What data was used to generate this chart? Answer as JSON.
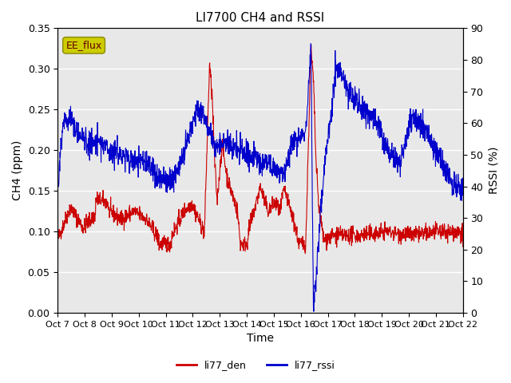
{
  "title": "LI7700 CH4 and RSSI",
  "xlabel": "Time",
  "ylabel_left": "CH4 (ppm)",
  "ylabel_right": "RSSI (%)",
  "ylim_left": [
    0.0,
    0.35
  ],
  "ylim_right": [
    0,
    90
  ],
  "yticks_left": [
    0.0,
    0.05,
    0.1,
    0.15,
    0.2,
    0.25,
    0.3,
    0.35
  ],
  "yticks_right": [
    0,
    10,
    20,
    30,
    40,
    50,
    60,
    70,
    80,
    90
  ],
  "xtick_labels": [
    "Oct 7",
    "Oct 8",
    "Oct 9",
    "Oct 10",
    "Oct 11",
    "Oct 12",
    "Oct 13",
    "Oct 14",
    "Oct 15",
    "Oct 16",
    "Oct 17",
    "Oct 18",
    "Oct 19",
    "Oct 20",
    "Oct 21",
    "Oct 22"
  ],
  "color_ch4": "#cc0000",
  "color_rssi": "#0000cc",
  "legend_label_ch4": "li77_den",
  "legend_label_rssi": "li77_rssi",
  "annotation_text": "EE_flux",
  "annotation_box_color": "#cccc00",
  "background_color": "#ffffff",
  "plot_bg_color": "#e8e8e8",
  "grid_color": "#ffffff",
  "n_days": 16
}
